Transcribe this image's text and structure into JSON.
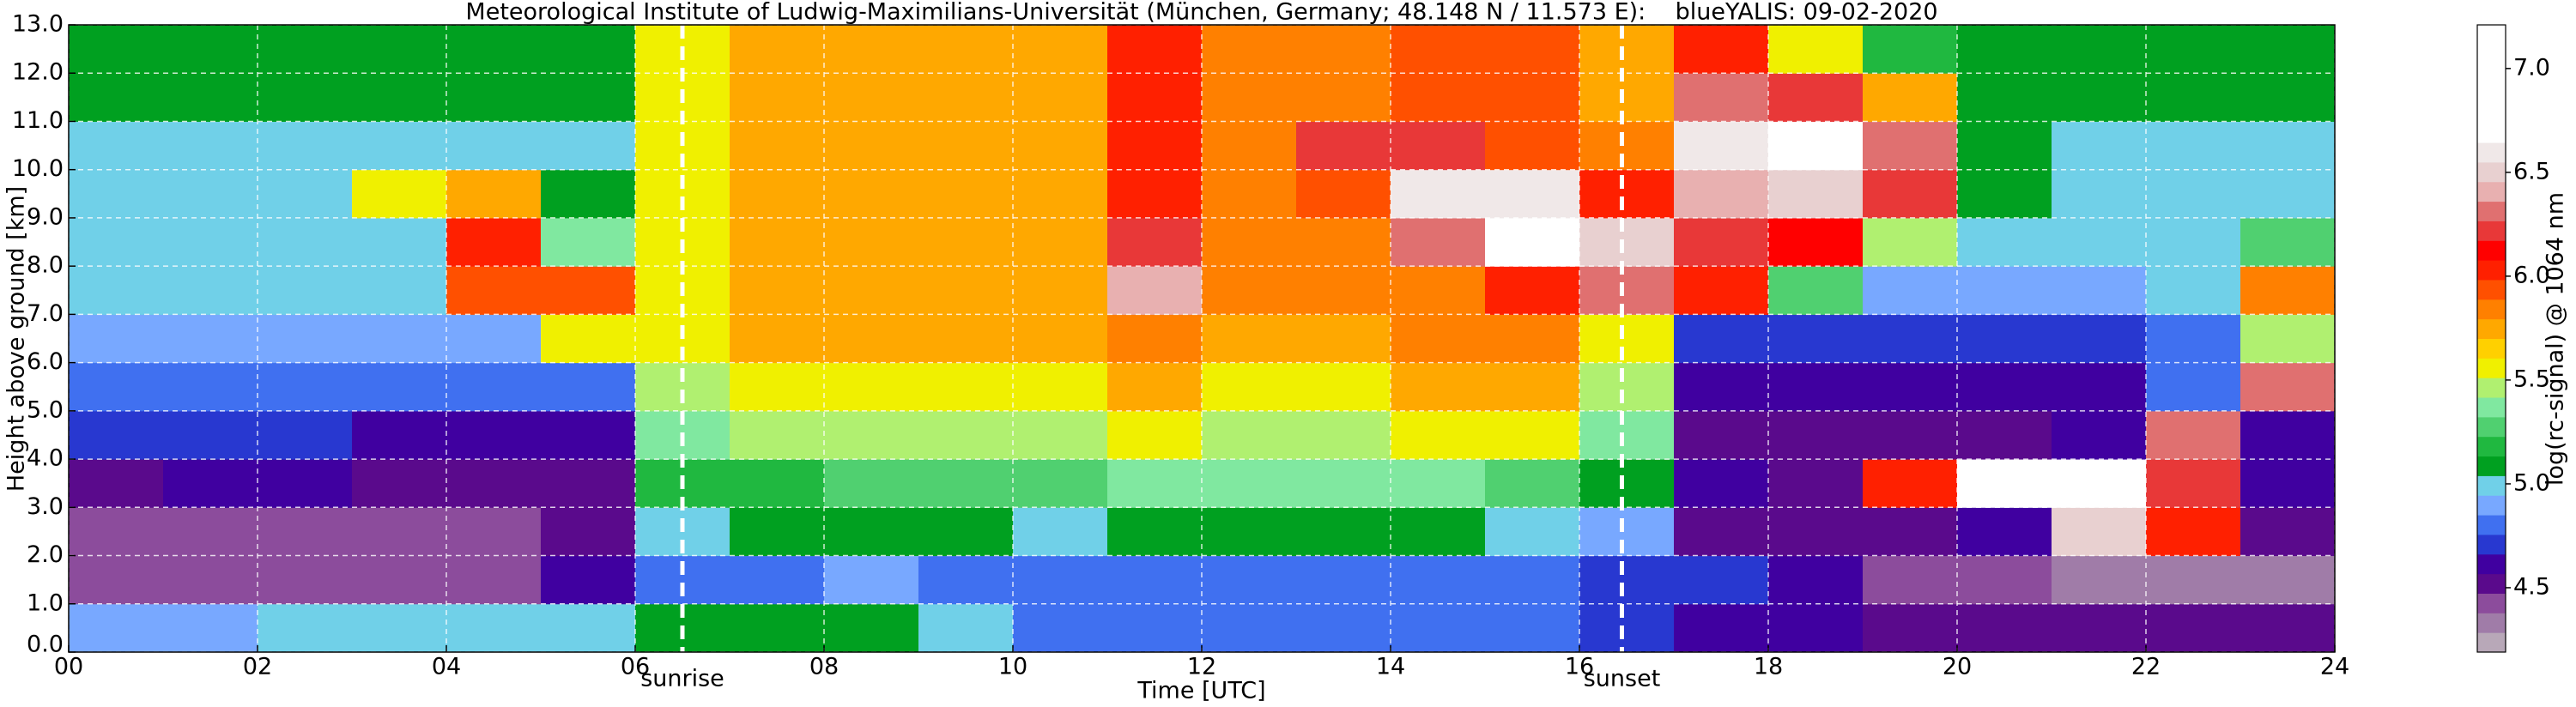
{
  "chart_data": {
    "type": "heatmap",
    "title": "Meteorological Institute of Ludwig-Maximilians-Universität (München, Germany; 48.148 N / 11.573 E):    blueYALIS: 09-02-2020",
    "x_label": "Time [UTC]",
    "y_label": "Height above ground [km]",
    "colorbar_label": "log(rc-signal) @ 1064 nm",
    "xlim": [
      0,
      24
    ],
    "ylim": [
      0,
      13
    ],
    "clim": [
      4.19,
      7.21
    ],
    "grid": true,
    "xticks": [
      {
        "value": 0,
        "label": "00"
      },
      {
        "value": 2,
        "label": "02"
      },
      {
        "value": 4,
        "label": "04"
      },
      {
        "value": 6,
        "label": "06"
      },
      {
        "value": 8,
        "label": "08"
      },
      10,
      12,
      14,
      16,
      18,
      20,
      22,
      24
    ],
    "yticks": [
      {
        "value": 0,
        "label": "0.0"
      },
      {
        "value": 1,
        "label": "1.0"
      },
      {
        "value": 2,
        "label": "2.0"
      },
      {
        "value": 3,
        "label": "3.0"
      },
      {
        "value": 4,
        "label": "4.0"
      },
      {
        "value": 5,
        "label": "5.0"
      },
      {
        "value": 6,
        "label": "6.0"
      },
      {
        "value": 7,
        "label": "7.0"
      },
      {
        "value": 8,
        "label": "8.0"
      },
      {
        "value": 9,
        "label": "9.0"
      },
      {
        "value": 10,
        "label": "10.0"
      },
      {
        "value": 11,
        "label": "11.0"
      },
      {
        "value": 12,
        "label": "12.0"
      },
      {
        "value": 13,
        "label": "13.0"
      }
    ],
    "cticks": [
      4.5,
      {
        "value": 5,
        "label": "5.0"
      },
      5.5,
      {
        "value": 6,
        "label": "6.0"
      },
      6.5,
      {
        "value": 7,
        "label": "7.0"
      }
    ],
    "colorscale": [
      "#b8a8b8",
      "#a07ca8",
      "#8c4c9c",
      "#5a0a8c",
      "#4000a0",
      "#2838d0",
      "#4070f0",
      "#78a8ff",
      "#70d0e8",
      "#00a020",
      "#20b840",
      "#50d070",
      "#80e8a0",
      "#b0f070",
      "#f0f000",
      "#ffd000",
      "#ffa800",
      "#ff8000",
      "#ff5000",
      "#ff2000",
      "#ff0000",
      "#e83838",
      "#e07070",
      "#e8b0b0",
      "#e8d0d0",
      "#f0e8e8",
      "#ffffff",
      "#ffffff",
      "#ffffff",
      "#ffffff",
      "#ffffff",
      "#ffffff"
    ],
    "annotations": [
      {
        "x": 6.5,
        "label": "sunrise"
      },
      {
        "x": 16.45,
        "label": "sunset"
      }
    ],
    "x": [
      0.5,
      1.5,
      2.5,
      3.5,
      4.5,
      5.5,
      6.5,
      7.5,
      8.5,
      9.5,
      10.5,
      11.5,
      12.5,
      13.5,
      14.5,
      15.5,
      16.5,
      17.5,
      18.5,
      19.5,
      20.5,
      21.5,
      22.5,
      23.5
    ],
    "y": [
      0.5,
      1.5,
      2.5,
      3.5,
      4.5,
      5.5,
      6.5,
      7.5,
      8.5,
      9.5,
      10.5,
      11.5,
      12.5
    ],
    "z": [
      [
        4.9,
        4.9,
        5.0,
        5.0,
        5.0,
        5.0,
        5.1,
        5.1,
        5.1,
        5.0,
        4.8,
        4.8,
        4.8,
        4.8,
        4.8,
        4.8,
        4.7,
        4.6,
        4.6,
        4.5,
        4.5,
        4.5,
        4.5,
        4.5
      ],
      [
        4.4,
        4.4,
        4.4,
        4.4,
        4.4,
        4.6,
        4.8,
        4.8,
        4.9,
        4.8,
        4.8,
        4.8,
        4.8,
        4.8,
        4.8,
        4.8,
        4.7,
        4.7,
        4.6,
        4.4,
        4.4,
        4.3,
        4.3,
        4.3
      ],
      [
        4.4,
        4.4,
        4.4,
        4.4,
        4.4,
        4.5,
        5.0,
        5.1,
        5.1,
        5.1,
        5.0,
        5.1,
        5.1,
        5.1,
        5.1,
        5.0,
        4.9,
        4.5,
        4.5,
        4.5,
        4.6,
        6.5,
        6.0,
        4.5
      ],
      [
        4.5,
        4.6,
        4.6,
        4.5,
        4.5,
        4.5,
        5.2,
        5.2,
        5.3,
        5.3,
        5.3,
        5.4,
        5.4,
        5.4,
        5.4,
        5.3,
        5.1,
        4.6,
        4.5,
        6.0,
        6.8,
        6.8,
        6.2,
        4.6
      ],
      [
        4.7,
        4.7,
        4.7,
        4.6,
        4.6,
        4.6,
        5.4,
        5.5,
        5.5,
        5.5,
        5.5,
        5.6,
        5.5,
        5.5,
        5.6,
        5.6,
        5.4,
        4.5,
        4.5,
        4.5,
        4.5,
        4.6,
        6.3,
        4.6
      ],
      [
        4.8,
        4.8,
        4.8,
        4.8,
        4.8,
        4.8,
        5.5,
        5.6,
        5.6,
        5.6,
        5.6,
        5.7,
        5.6,
        5.6,
        5.7,
        5.7,
        5.5,
        4.6,
        4.6,
        4.6,
        4.6,
        4.6,
        4.8,
        6.3
      ],
      [
        4.9,
        4.9,
        4.9,
        4.9,
        4.9,
        5.6,
        5.6,
        5.7,
        5.7,
        5.7,
        5.7,
        5.8,
        5.7,
        5.7,
        5.8,
        5.8,
        5.6,
        4.7,
        4.7,
        4.7,
        4.7,
        4.7,
        4.8,
        5.5
      ],
      [
        5.0,
        5.0,
        5.0,
        5.0,
        5.9,
        5.9,
        5.6,
        5.7,
        5.7,
        5.7,
        5.7,
        6.4,
        5.8,
        5.8,
        5.8,
        6.0,
        6.3,
        6.0,
        5.3,
        4.9,
        4.9,
        4.9,
        5.0,
        5.8
      ],
      [
        5.0,
        5.0,
        5.0,
        5.0,
        6.0,
        5.4,
        5.6,
        5.7,
        5.7,
        5.7,
        5.7,
        6.2,
        5.8,
        5.8,
        6.3,
        6.8,
        6.5,
        6.2,
        6.1,
        5.5,
        5.0,
        5.0,
        5.0,
        5.3
      ],
      [
        5.0,
        5.0,
        5.0,
        5.6,
        5.7,
        5.1,
        5.6,
        5.7,
        5.7,
        5.7,
        5.7,
        6.0,
        5.8,
        5.9,
        6.6,
        6.6,
        6.0,
        6.4,
        6.5,
        6.2,
        5.1,
        5.0,
        5.0,
        5.0
      ],
      [
        5.0,
        5.0,
        5.0,
        5.0,
        5.0,
        5.0,
        5.6,
        5.7,
        5.7,
        5.7,
        5.7,
        6.0,
        5.8,
        6.2,
        6.2,
        5.9,
        5.8,
        6.6,
        6.7,
        6.3,
        5.1,
        5.0,
        5.0,
        5.0
      ],
      [
        5.1,
        5.1,
        5.1,
        5.1,
        5.1,
        5.1,
        5.6,
        5.7,
        5.7,
        5.7,
        5.7,
        6.0,
        5.8,
        5.8,
        5.9,
        5.9,
        5.7,
        6.3,
        6.2,
        5.7,
        5.1,
        5.1,
        5.1,
        5.1
      ],
      [
        5.1,
        5.1,
        5.1,
        5.1,
        5.1,
        5.1,
        5.6,
        5.7,
        5.7,
        5.7,
        5.7,
        6.0,
        5.8,
        5.8,
        5.9,
        5.9,
        5.7,
        6.0,
        5.6,
        5.2,
        5.1,
        5.1,
        5.1,
        5.1
      ]
    ]
  }
}
